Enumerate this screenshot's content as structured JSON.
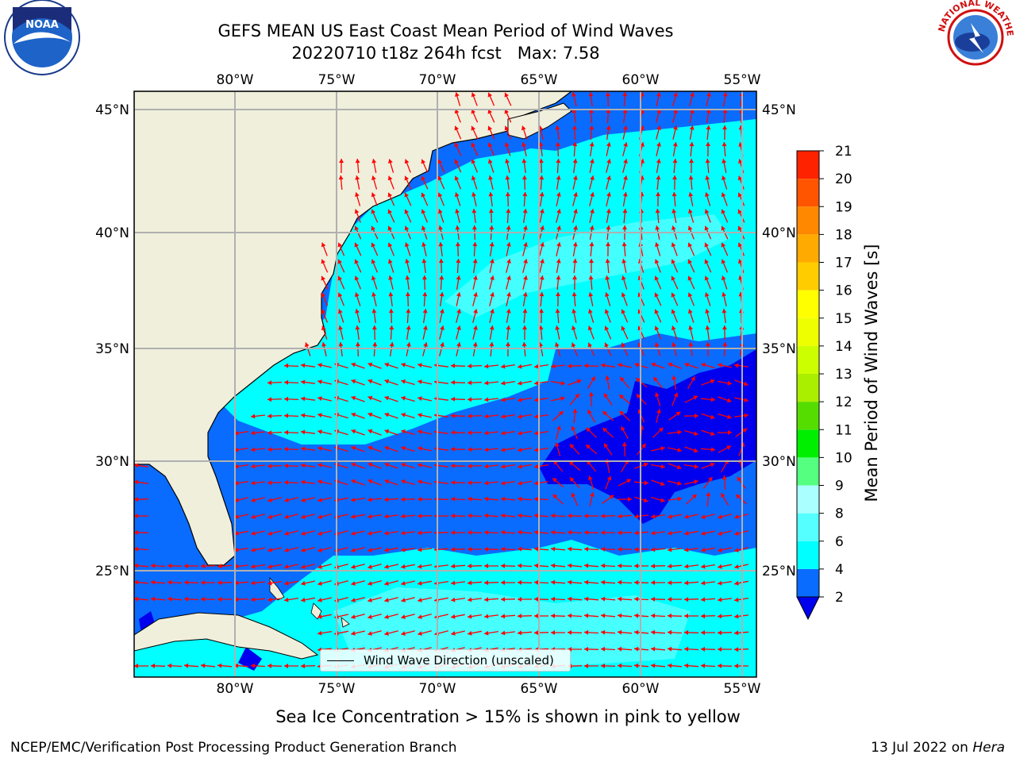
{
  "title": "GEFS MEAN US East Coast Mean Period of Wind Waves",
  "subtitle": "20220710 t18z 264h fcst   Max: 7.58",
  "logos": {
    "left": "noaa-logo",
    "right": "national-weather-service-logo"
  },
  "map": {
    "lon_labels": [
      "80°W",
      "75°W",
      "70°W",
      "65°W",
      "60°W",
      "55°W"
    ],
    "lat_labels": [
      "45°N",
      "40°N",
      "35°N",
      "30°N",
      "25°N"
    ],
    "extent": {
      "lon_min": -85,
      "lon_max": -54.3,
      "lat_min": 20.5,
      "lat_max": 45.8
    },
    "legend_label": "Wind Wave Direction (unscaled)",
    "colors": {
      "land": "#efefdc",
      "grid": "#b0b0b0",
      "arrow": "#ff0000"
    }
  },
  "colorbar": {
    "label": "Mean Period of Wind Waves [s]",
    "ticks": [
      "2",
      "4",
      "6",
      "8",
      "9",
      "10",
      "11",
      "12",
      "13",
      "14",
      "15",
      "16",
      "17",
      "18",
      "19",
      "20",
      "21"
    ],
    "colors": [
      "#0a6bff",
      "#00ffff",
      "#55ffff",
      "#aaffff",
      "#55ff7f",
      "#00ee00",
      "#55dd00",
      "#aaee00",
      "#ccff00",
      "#eeff00",
      "#ffff00",
      "#ffcc00",
      "#ffaa00",
      "#ff8800",
      "#ff5500",
      "#ff2200"
    ],
    "under_color": "#0000ee"
  },
  "ice_note": "Sea Ice Concentration > 15% is shown in pink to yellow",
  "footer": {
    "left": "NCEP/EMC/Verification Post Processing Product Generation Branch",
    "right_prefix": "13 Jul 2022 on ",
    "right_host": "Hera"
  }
}
